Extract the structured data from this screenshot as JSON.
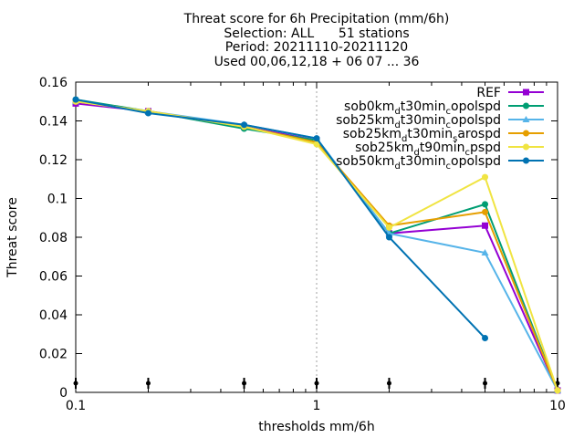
{
  "chart_data": {
    "type": "line",
    "title_lines": [
      "Threat score  for 6h Precipitation (mm/6h)",
      "Selection: ALL      51 stations",
      "Period: 20211110-20211120",
      "Used 00,06,12,18 + 06 07 ... 36"
    ],
    "xlabel": "thresholds mm/6h",
    "ylabel": "Threat score",
    "x_scale": "log",
    "xlim": [
      0.1,
      10
    ],
    "ylim": [
      0,
      0.16
    ],
    "x_ticks": [
      0.1,
      1,
      10
    ],
    "x_tick_labels": [
      "0.1",
      "1",
      "10"
    ],
    "y_ticks": [
      0,
      0.02,
      0.04,
      0.06,
      0.08,
      0.1,
      0.12,
      0.14,
      0.16
    ],
    "y_tick_labels": [
      "0",
      "0.02",
      "0.04",
      "0.06",
      "0.08",
      "0.1",
      "0.12",
      "0.14",
      "0.16"
    ],
    "grid": "dashed at x=1",
    "legend_position": "top-right",
    "bottom_markers_x": [
      0.1,
      0.2,
      0.5,
      1,
      2,
      5,
      10
    ],
    "series": [
      {
        "name": "REF",
        "legend": [
          {
            "t": "REF",
            "s": false
          }
        ],
        "color": "#9400d3",
        "marker": "square",
        "x": [
          0.1,
          0.2,
          0.5,
          1,
          2,
          5,
          10
        ],
        "y": [
          0.149,
          0.145,
          0.137,
          0.13,
          0.082,
          0.086,
          0.001
        ]
      },
      {
        "name": "sob0km_dt30min_copolspd",
        "legend": [
          {
            "t": "sob0km",
            "s": false
          },
          {
            "t": "d",
            "s": true
          },
          {
            "t": "t30min",
            "s": false
          },
          {
            "t": "c",
            "s": true
          },
          {
            "t": "opolspd",
            "s": false
          }
        ],
        "color": "#009e73",
        "marker": "circle",
        "x": [
          0.1,
          0.2,
          0.5,
          1,
          2,
          5,
          10
        ],
        "y": [
          0.151,
          0.145,
          0.136,
          0.13,
          0.082,
          0.097,
          0.001
        ]
      },
      {
        "name": "sob25km_dt30min_copolspd",
        "legend": [
          {
            "t": "sob25km",
            "s": false
          },
          {
            "t": "d",
            "s": true
          },
          {
            "t": "t30min",
            "s": false
          },
          {
            "t": "c",
            "s": true
          },
          {
            "t": "opolspd",
            "s": false
          }
        ],
        "color": "#56b4e9",
        "marker": "triangle",
        "x": [
          0.1,
          0.2,
          0.5,
          1,
          2,
          5,
          10
        ],
        "y": [
          0.15,
          0.145,
          0.138,
          0.131,
          0.082,
          0.072,
          0.001
        ]
      },
      {
        "name": "sob25km_dt30min_sarospd",
        "legend": [
          {
            "t": "sob25km",
            "s": false
          },
          {
            "t": "d",
            "s": true
          },
          {
            "t": "t30min",
            "s": false
          },
          {
            "t": "s",
            "s": true
          },
          {
            "t": "arospd",
            "s": false
          }
        ],
        "color": "#e69f00",
        "marker": "circle",
        "x": [
          0.1,
          0.2,
          0.5,
          1,
          2,
          5,
          10
        ],
        "y": [
          0.15,
          0.145,
          0.137,
          0.129,
          0.086,
          0.093,
          0.001
        ]
      },
      {
        "name": "sob25km_dt90min_cpspd",
        "legend": [
          {
            "t": "sob25km",
            "s": false
          },
          {
            "t": "d",
            "s": true
          },
          {
            "t": "t90min",
            "s": false
          },
          {
            "t": "c",
            "s": true
          },
          {
            "t": "pspd",
            "s": false
          }
        ],
        "color": "#f0e442",
        "marker": "circle",
        "x": [
          0.1,
          0.2,
          0.5,
          1,
          2,
          5,
          10
        ],
        "y": [
          0.15,
          0.145,
          0.137,
          0.128,
          0.085,
          0.111,
          0.001
        ]
      },
      {
        "name": "sob50km_dt30min_copolspd",
        "legend": [
          {
            "t": "sob50km",
            "s": false
          },
          {
            "t": "d",
            "s": true
          },
          {
            "t": "t30min",
            "s": false
          },
          {
            "t": "c",
            "s": true
          },
          {
            "t": "opolspd",
            "s": false
          }
        ],
        "color": "#0072b2",
        "marker": "circle",
        "x": [
          0.1,
          0.2,
          0.5,
          1,
          2,
          5
        ],
        "y": [
          0.151,
          0.144,
          0.138,
          0.131,
          0.08,
          0.028
        ]
      }
    ]
  }
}
